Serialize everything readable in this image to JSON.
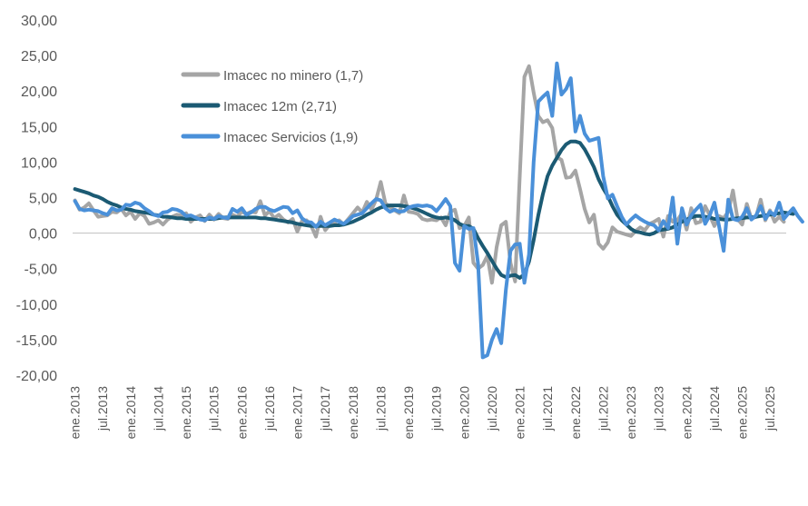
{
  "chart_data": {
    "type": "line",
    "title": "",
    "xlabel": "",
    "ylabel": "",
    "ylim": [
      -20,
      30
    ],
    "y_ticks": [
      "30,00",
      "25,00",
      "20,00",
      "15,00",
      "10,00",
      "5,00",
      "0,00",
      "-5,00",
      "-10,00",
      "-15,00",
      "-20,00"
    ],
    "x_tick_labels": [
      "ene.2013",
      "jul.2013",
      "ene.2014",
      "jul.2014",
      "ene.2015",
      "jul.2015",
      "ene.2016",
      "jul.2016",
      "ene.2017",
      "jul.2017",
      "ene.2018",
      "jul.2018",
      "ene.2019",
      "jul.2019",
      "ene.2020",
      "jul.2020",
      "ene.2021",
      "jul.2021",
      "ene.2022",
      "jul.2022",
      "ene.2023",
      "jul.2023",
      "ene.2024",
      "jul.2024",
      "ene.2025",
      "jul.2025"
    ],
    "x_start": "ene.2013",
    "x_frequency": "monthly",
    "grid": false,
    "legend_position": "top-left",
    "series": [
      {
        "name": "Imacec no minero (1,7)",
        "color": "#A5A5A5",
        "values": [
          4.6,
          3.3,
          3.6,
          4.2,
          3.2,
          2.3,
          2.4,
          2.5,
          3.0,
          2.9,
          3.4,
          2.5,
          3.0,
          2.0,
          2.8,
          2.4,
          1.3,
          1.5,
          1.8,
          1.2,
          1.9,
          2.3,
          2.6,
          2.5,
          2.8,
          1.6,
          2.2,
          2.5,
          1.7,
          2.6,
          1.9,
          2.7,
          2.1,
          2.0,
          2.6,
          2.3,
          3.0,
          2.7,
          3.0,
          2.9,
          4.5,
          2.5,
          3.1,
          2.1,
          2.6,
          1.9,
          1.5,
          2.0,
          0.2,
          1.7,
          1.8,
          1.0,
          -0.5,
          2.3,
          0.4,
          1.2,
          1.5,
          1.8,
          1.2,
          2.0,
          2.8,
          3.6,
          2.9,
          4.4,
          3.3,
          4.7,
          7.2,
          4.2,
          3.7,
          3.2,
          2.8,
          5.3,
          3.0,
          2.9,
          2.7,
          2.0,
          1.8,
          1.9,
          1.8,
          2.2,
          1.1,
          3.0,
          3.3,
          0.7,
          1.0,
          2.2,
          -4.2,
          -5.0,
          -4.5,
          -3.2,
          -7.0,
          -2.0,
          1.1,
          1.6,
          -4.2,
          -6.8,
          8.0,
          22.0,
          23.5,
          19.8,
          16.5,
          15.6,
          15.9,
          14.8,
          10.7,
          10.3,
          7.8,
          7.9,
          8.8,
          6.2,
          3.4,
          1.5,
          2.6,
          -1.5,
          -2.2,
          -1.3,
          0.8,
          0.2,
          0.0,
          -0.2,
          -0.4,
          0.3,
          0.8,
          0.4,
          1.3,
          1.6,
          2.0,
          -0.5,
          2.4,
          1.6,
          1.8,
          2.8,
          0.5,
          3.5,
          1.4,
          1.6,
          3.8,
          2.5,
          1.0,
          2.4,
          2.1,
          3.0,
          6.0,
          2.0,
          1.2,
          4.1,
          2.0,
          2.3,
          4.7,
          1.8,
          3.2,
          1.6,
          2.3,
          1.6
        ]
      },
      {
        "name": "Imacec 12m (2,71)",
        "color": "#1B5A73",
        "values": [
          6.2,
          6.0,
          5.8,
          5.6,
          5.3,
          5.1,
          4.8,
          4.4,
          4.1,
          3.9,
          3.6,
          3.4,
          3.3,
          3.1,
          3.0,
          2.9,
          2.8,
          2.6,
          2.5,
          2.3,
          2.3,
          2.2,
          2.1,
          2.1,
          2.0,
          2.0,
          2.0,
          2.0,
          2.0,
          2.0,
          2.0,
          2.1,
          2.2,
          2.2,
          2.2,
          2.2,
          2.2,
          2.2,
          2.2,
          2.2,
          2.1,
          2.1,
          2.0,
          1.9,
          1.8,
          1.7,
          1.6,
          1.5,
          1.3,
          1.2,
          1.1,
          1.0,
          1.0,
          1.0,
          1.0,
          1.0,
          1.1,
          1.1,
          1.2,
          1.4,
          1.6,
          1.9,
          2.2,
          2.6,
          2.9,
          3.3,
          3.6,
          3.8,
          3.9,
          3.9,
          3.9,
          3.8,
          3.7,
          3.5,
          3.3,
          3.0,
          2.7,
          2.4,
          2.2,
          2.1,
          2.2,
          2.1,
          1.8,
          1.3,
          1.0,
          1.0,
          0.6,
          -0.7,
          -1.8,
          -2.8,
          -3.9,
          -5.0,
          -5.9,
          -6.2,
          -6.0,
          -5.9,
          -6.3,
          -5.8,
          -4.0,
          -1.0,
          2.5,
          5.5,
          8.0,
          9.5,
          10.6,
          11.7,
          12.5,
          12.9,
          12.9,
          12.7,
          11.8,
          10.6,
          9.3,
          7.6,
          6.3,
          5.2,
          3.8,
          2.6,
          1.8,
          1.2,
          0.6,
          0.2,
          0.1,
          -0.1,
          -0.2,
          0.0,
          0.4,
          0.5,
          0.6,
          0.8,
          1.2,
          1.6,
          1.9,
          2.2,
          2.4,
          2.4,
          2.3,
          2.2,
          2.0,
          2.0,
          1.9,
          1.9,
          2.0,
          2.1,
          2.1,
          2.2,
          2.2,
          2.3,
          2.4,
          2.5,
          2.6,
          2.7,
          2.8,
          2.9,
          2.8,
          2.7
        ]
      },
      {
        "name": "Imacec Servicios (1,9)",
        "color": "#4A90D9",
        "values": [
          4.5,
          3.4,
          3.2,
          3.3,
          3.2,
          3.1,
          2.8,
          2.6,
          3.5,
          3.2,
          3.3,
          4.0,
          3.9,
          4.3,
          4.1,
          3.5,
          3.1,
          2.6,
          2.4,
          2.9,
          3.0,
          3.4,
          3.3,
          3.0,
          2.4,
          2.5,
          2.2,
          1.9,
          1.8,
          2.2,
          2.0,
          2.4,
          2.2,
          2.1,
          3.4,
          3.0,
          3.5,
          2.6,
          2.9,
          3.4,
          3.7,
          3.7,
          3.3,
          3.1,
          3.4,
          3.7,
          3.6,
          2.8,
          3.2,
          2.1,
          1.6,
          1.5,
          0.9,
          1.6,
          1.1,
          1.5,
          1.9,
          1.6,
          1.3,
          1.8,
          2.4,
          2.6,
          2.8,
          3.5,
          4.2,
          4.8,
          4.6,
          3.5,
          3.0,
          3.3,
          3.0,
          3.1,
          3.6,
          3.8,
          3.9,
          3.8,
          3.9,
          3.7,
          3.1,
          3.9,
          4.8,
          3.8,
          -4.2,
          -5.3,
          1.0,
          0.6,
          0.7,
          -4.3,
          -17.5,
          -17.2,
          -15.0,
          -13.5,
          -15.5,
          -8.0,
          -2.5,
          -1.6,
          -1.5,
          -7.0,
          -3.0,
          10.0,
          18.5,
          19.2,
          19.8,
          16.5,
          23.9,
          19.5,
          20.3,
          21.8,
          14.3,
          16.5,
          14.0,
          13.0,
          13.2,
          13.4,
          8.0,
          4.9,
          5.4,
          3.8,
          2.3,
          1.2,
          1.9,
          2.5,
          2.0,
          1.6,
          1.3,
          1.1,
          0.4,
          1.7,
          0.7,
          5.0,
          -1.5,
          3.5,
          1.2,
          2.5,
          3.3,
          4.0,
          1.3,
          2.5,
          4.3,
          1.0,
          -2.5,
          4.7,
          2.0,
          1.8,
          2.3,
          3.5,
          1.9,
          2.5,
          3.8,
          2.0,
          3.0,
          2.5,
          4.3,
          2.0,
          2.8,
          3.5,
          2.4,
          1.6
        ]
      }
    ]
  }
}
